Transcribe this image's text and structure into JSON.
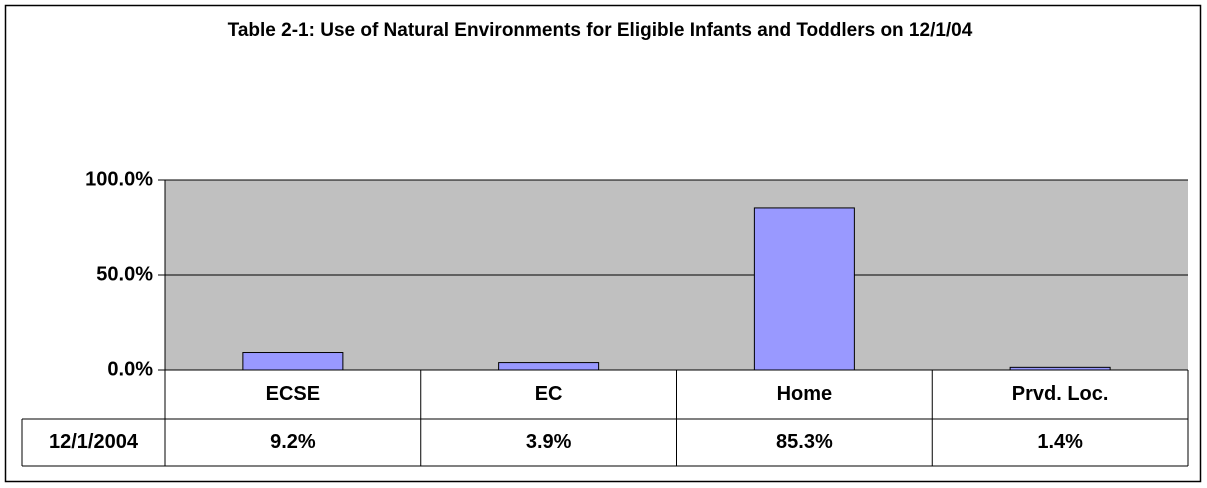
{
  "chart_data": {
    "type": "bar",
    "title": "Table 2-1:  Use of Natural Environments for Eligible Infants and Toddlers on 12/1/04",
    "categories": [
      "ECSE",
      "EC",
      "Home",
      "Prvd. Loc."
    ],
    "series": [
      {
        "name": "12/1/2004",
        "color": "#9999ff",
        "values": [
          9.2,
          3.9,
          85.3,
          1.4
        ],
        "value_labels": [
          "9.2%",
          "3.9%",
          "85.3%",
          "1.4%"
        ]
      }
    ],
    "ylim": [
      0,
      100
    ],
    "yticks": [
      {
        "value": 0,
        "label": "0.0%"
      },
      {
        "value": 50,
        "label": "50.0%"
      },
      {
        "value": 100,
        "label": "100.0%"
      }
    ],
    "grid": true,
    "plot_background": "#c0c0c0"
  }
}
